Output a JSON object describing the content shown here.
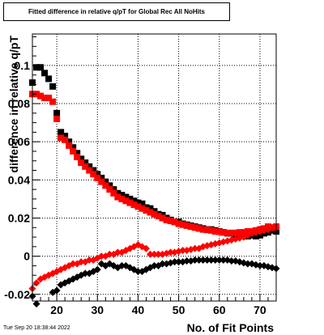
{
  "page": {
    "footer_timestamp": "Tue Sep 20 18:38:44 2022"
  },
  "chart_data": {
    "type": "scatter",
    "title": "Fitted difference in relative q/pT for Global Rec All NoHits",
    "xlabel": "No. of Fit Points",
    "ylabel": "difference in relative q/pT",
    "xlim": [
      14,
      74
    ],
    "ylim": [
      -0.0235,
      0.1165
    ],
    "x_ticks": [
      20,
      30,
      40,
      50,
      60,
      70
    ],
    "y_ticks": [
      -0.02,
      0,
      0.02,
      0.04,
      0.06,
      0.08,
      0.1
    ],
    "y_tick_labels": [
      "-0.02",
      "0",
      "0.02",
      "0.04",
      "0.06",
      "0.08",
      "0.1"
    ],
    "grid": true,
    "colors": {
      "black": "#000000",
      "red": "#ff0000"
    },
    "series": [
      {
        "marker": "square",
        "color": "#000000",
        "x": [
          14,
          15,
          16,
          17,
          18,
          19,
          20,
          21,
          22,
          23,
          24,
          25,
          26,
          27,
          28,
          29,
          30,
          31,
          32,
          33,
          34,
          35,
          36,
          37,
          38,
          39,
          40,
          41,
          42,
          43,
          44,
          45,
          46,
          47,
          48,
          49,
          50,
          51,
          52,
          53,
          54,
          55,
          56,
          57,
          58,
          59,
          60,
          61,
          62,
          63,
          64,
          65,
          66,
          67,
          68,
          69,
          70,
          71,
          72,
          73,
          74
        ],
        "y": [
          0.091,
          0.099,
          0.099,
          0.096,
          0.093,
          0.089,
          0.075,
          0.065,
          0.063,
          0.06,
          0.057,
          0.054,
          0.051,
          0.049,
          0.047,
          0.045,
          0.043,
          0.041,
          0.039,
          0.037,
          0.035,
          0.033,
          0.032,
          0.031,
          0.03,
          0.029,
          0.028,
          0.0275,
          0.0255,
          0.025,
          0.0235,
          0.022,
          0.0215,
          0.02,
          0.019,
          0.018,
          0.018,
          0.017,
          0.0165,
          0.016,
          0.0155,
          0.015,
          0.0145,
          0.014,
          0.014,
          0.0135,
          0.013,
          0.0125,
          0.012,
          0.012,
          0.0115,
          0.011,
          0.0105,
          0.0105,
          0.011,
          0.0105,
          0.011,
          0.012,
          0.0125,
          0.0135,
          0.013
        ]
      },
      {
        "marker": "square",
        "color": "#ff0000",
        "x": [
          14,
          15,
          16,
          17,
          18,
          19,
          20,
          21,
          22,
          23,
          24,
          25,
          26,
          27,
          28,
          29,
          30,
          31,
          32,
          33,
          34,
          35,
          36,
          37,
          38,
          39,
          40,
          41,
          42,
          43,
          44,
          45,
          46,
          47,
          48,
          49,
          50,
          51,
          52,
          53,
          54,
          55,
          56,
          57,
          58,
          59,
          60,
          61,
          62,
          63,
          64,
          65,
          66,
          67,
          68,
          69,
          70,
          71,
          72,
          73,
          74
        ],
        "y": [
          0.085,
          0.085,
          0.084,
          0.083,
          0.083,
          0.081,
          0.072,
          0.062,
          0.061,
          0.058,
          0.055,
          0.052,
          0.049,
          0.047,
          0.045,
          0.043,
          0.041,
          0.039,
          0.037,
          0.035,
          0.033,
          0.031,
          0.03,
          0.029,
          0.028,
          0.027,
          0.026,
          0.025,
          0.024,
          0.023,
          0.022,
          0.021,
          0.02,
          0.019,
          0.0185,
          0.018,
          0.017,
          0.0165,
          0.016,
          0.0155,
          0.015,
          0.0145,
          0.014,
          0.0138,
          0.0135,
          0.013,
          0.0128,
          0.0125,
          0.0122,
          0.0122,
          0.0122,
          0.0125,
          0.0125,
          0.013,
          0.013,
          0.0135,
          0.014,
          0.0145,
          0.0155,
          0.015,
          0.0155
        ]
      },
      {
        "marker": "diamond",
        "color": "#ff0000",
        "x": [
          14,
          15,
          16,
          17,
          18,
          19,
          20,
          21,
          22,
          23,
          24,
          25,
          26,
          27,
          28,
          29,
          30,
          31,
          32,
          33,
          34,
          35,
          36,
          37,
          38,
          39,
          40,
          41,
          42,
          43,
          44,
          45,
          46,
          47,
          48,
          49,
          50,
          51,
          52,
          53,
          54,
          55,
          56,
          57,
          58,
          59,
          60,
          61,
          62,
          63,
          64,
          65,
          66,
          67,
          68,
          69,
          70,
          71,
          72,
          73,
          74
        ],
        "y": [
          -0.017,
          -0.014,
          -0.012,
          -0.011,
          -0.01,
          -0.009,
          -0.008,
          -0.007,
          -0.006,
          -0.005,
          -0.004,
          -0.004,
          -0.003,
          -0.003,
          -0.002,
          -0.002,
          -0.001,
          0.0,
          0.0,
          0.001,
          0.001,
          0.002,
          0.002,
          0.003,
          0.004,
          0.005,
          0.006,
          0.005,
          0.004,
          0.001,
          0.001,
          0.001,
          0.001,
          0.0015,
          0.002,
          0.002,
          0.0025,
          0.003,
          0.003,
          0.0035,
          0.004,
          0.004,
          0.005,
          0.0055,
          0.006,
          0.0065,
          0.007,
          0.0075,
          0.008,
          0.0085,
          0.009,
          0.0095,
          0.01,
          0.011,
          0.012,
          0.0125,
          0.013,
          0.0135,
          0.014,
          0.015,
          0.015
        ]
      },
      {
        "marker": "diamond",
        "color": "#000000",
        "x": [
          14,
          15,
          19,
          20,
          21,
          22,
          23,
          24,
          25,
          26,
          27,
          28,
          29,
          30,
          31,
          32,
          33,
          34,
          35,
          36,
          37,
          38,
          39,
          40,
          41,
          42,
          43,
          44,
          45,
          46,
          47,
          48,
          49,
          50,
          51,
          52,
          53,
          54,
          55,
          56,
          57,
          58,
          59,
          60,
          61,
          62,
          63,
          64,
          65,
          66,
          67,
          68,
          69,
          70,
          71,
          72,
          73,
          74
        ],
        "y": [
          -0.021,
          -0.025,
          -0.019,
          -0.018,
          -0.015,
          -0.014,
          -0.013,
          -0.012,
          -0.011,
          -0.01,
          -0.009,
          -0.009,
          -0.008,
          -0.007,
          -0.004,
          -0.005,
          -0.004,
          -0.005,
          -0.006,
          -0.005,
          -0.005,
          -0.006,
          -0.007,
          -0.008,
          -0.008,
          -0.007,
          -0.006,
          -0.005,
          -0.005,
          -0.004,
          -0.004,
          -0.0035,
          -0.003,
          -0.003,
          -0.003,
          -0.0025,
          -0.0025,
          -0.002,
          -0.002,
          -0.002,
          -0.002,
          -0.002,
          -0.002,
          -0.002,
          -0.002,
          -0.002,
          -0.0025,
          -0.0025,
          -0.003,
          -0.0035,
          -0.004,
          -0.004,
          -0.0045,
          -0.005,
          -0.005,
          -0.0055,
          -0.006,
          -0.0065
        ]
      }
    ]
  }
}
